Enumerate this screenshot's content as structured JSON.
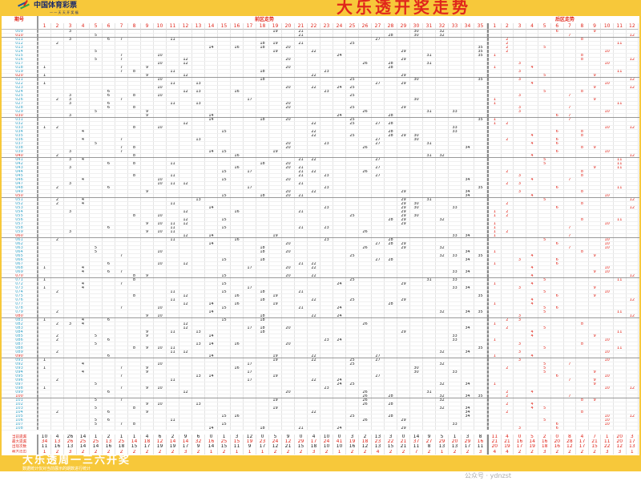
{
  "header": {
    "logo_text": "中国体育彩票",
    "logo_sub": "一 一 天 天 开 奖 福",
    "title": "大乐透开奖走势"
  },
  "table": {
    "issue_header": "期号",
    "front_header": "前区走势",
    "back_header": "后区走势",
    "front_count": 35,
    "back_count": 12
  },
  "colors": {
    "banner": "#f7c83a",
    "accent_red": "#e0261b",
    "issue_blue": "#35a4c8"
  },
  "draws": [
    [
      "009",
      [
        3,
        19,
        21,
        30,
        32
      ],
      [
        6,
        9
      ]
    ],
    [
      "010",
      [
        5,
        21,
        28,
        30,
        32
      ],
      [
        7,
        12
      ]
    ],
    [
      "011",
      [
        3,
        6,
        7,
        11,
        27
      ],
      [
        2,
        8
      ]
    ],
    [
      "012",
      [
        2,
        18,
        19,
        21,
        25
      ],
      [
        2,
        11
      ]
    ],
    [
      "013",
      [
        14,
        16,
        18,
        20,
        35
      ],
      [
        2,
        5
      ]
    ],
    [
      "014",
      [
        5,
        19,
        22,
        29,
        35
      ],
      [
        2,
        10
      ]
    ],
    [
      "015",
      [
        7,
        10,
        24,
        31,
        35
      ],
      [
        1,
        8
      ]
    ],
    [
      "016",
      [
        5,
        7,
        12,
        20,
        29
      ],
      [
        8,
        12
      ]
    ],
    [
      "017",
      [
        10,
        12,
        26,
        28,
        31
      ],
      [
        3,
        10
      ]
    ],
    [
      "018",
      [
        1,
        7,
        9,
        20,
        28
      ],
      [
        1,
        4
      ]
    ],
    [
      "019",
      [
        7,
        8,
        11,
        18,
        23
      ],
      [
        3,
        11
      ]
    ],
    [
      "020",
      [
        1,
        9,
        12,
        22,
        29
      ],
      [
        5,
        9
      ]
    ],
    [
      "021",
      [
        10,
        18,
        25,
        30,
        35
      ],
      [
        3,
        12
      ]
    ],
    [
      "022",
      [
        1,
        11,
        13,
        27,
        29
      ],
      [
        4,
        10
      ]
    ],
    [
      "023",
      [
        10,
        20,
        22,
        24,
        25
      ],
      [
        9,
        12
      ]
    ],
    [
      "024",
      [
        6,
        12,
        13,
        16,
        23
      ],
      [
        5,
        8
      ]
    ],
    [
      "025",
      [
        3,
        6,
        8,
        10,
        25
      ],
      [
        3,
        7
      ]
    ],
    [
      "026",
      [
        2,
        3,
        7,
        17,
        30
      ],
      [
        1,
        9
      ]
    ],
    [
      "027",
      [
        3,
        6,
        11,
        13,
        20
      ],
      [
        1,
        11
      ]
    ],
    [
      "028",
      [
        6,
        8,
        20,
        25,
        29
      ],
      [
        3,
        7
      ]
    ],
    [
      "029",
      [
        5,
        9,
        26,
        31,
        33
      ],
      [
        3,
        10
      ]
    ],
    [
      "030",
      [
        3,
        9,
        14,
        24,
        28
      ],
      [
        6,
        7
      ]
    ],
    [
      "031",
      [
        14,
        18,
        20,
        25,
        35
      ],
      [
        1,
        7
      ]
    ],
    [
      "032",
      [
        12,
        22,
        25,
        27,
        28
      ],
      [
        1,
        2
      ]
    ],
    [
      "033",
      [
        1,
        2,
        8,
        10,
        33
      ],
      [
        10,
        12
      ]
    ],
    [
      "034",
      [
        4,
        15,
        22,
        28,
        33
      ],
      [
        6,
        8
      ]
    ],
    [
      "035",
      [
        22,
        25,
        28,
        29,
        30
      ],
      [
        4,
        8
      ]
    ],
    [
      "036",
      [
        4,
        7,
        13,
        27,
        30
      ],
      [
        2,
        6
      ]
    ],
    [
      "037",
      [
        5,
        20,
        23,
        27,
        31
      ],
      [
        4,
        6
      ]
    ],
    [
      "038",
      [
        7,
        8,
        20,
        26,
        34
      ],
      [
        8,
        9
      ]
    ],
    [
      "039",
      [
        3,
        7,
        14,
        15,
        19
      ],
      [
        6,
        10
      ]
    ],
    [
      "040",
      [
        2,
        8,
        16,
        31,
        32
      ],
      [
        4,
        12
      ]
    ],
    [
      "041",
      [
        3,
        4,
        21,
        22,
        27
      ],
      [
        5,
        11
      ]
    ],
    [
      "042",
      [
        6,
        8,
        11,
        18,
        20
      ],
      [
        5,
        11
      ]
    ],
    [
      "043",
      [
        3,
        16,
        20,
        21,
        27
      ],
      [
        9,
        11
      ]
    ],
    [
      "044",
      [
        15,
        17,
        21,
        22,
        26
      ],
      [
        2,
        8
      ]
    ],
    [
      "045",
      [
        8,
        11,
        21,
        23,
        27
      ],
      [
        3,
        8
      ]
    ],
    [
      "046",
      [
        4,
        10,
        15,
        20,
        34
      ],
      [
        4,
        7
      ]
    ],
    [
      "047",
      [
        3,
        10,
        11,
        12,
        21
      ],
      [
        2,
        3
      ]
    ],
    [
      "048",
      [
        2,
        6,
        17,
        23,
        35
      ],
      [
        6,
        11
      ]
    ],
    [
      "049",
      [
        9,
        20,
        22,
        29,
        34
      ],
      [
        3,
        8
      ]
    ],
    [
      "050",
      [
        15,
        18,
        20,
        21,
        34
      ],
      [
        4,
        10
      ]
    ],
    [
      "051",
      [
        2,
        4,
        13,
        29,
        31
      ],
      [
        5,
        12
      ]
    ],
    [
      "052",
      [
        2,
        4,
        11,
        29,
        30
      ],
      [
        2,
        8
      ]
    ],
    [
      "053",
      [
        14,
        23,
        29,
        30,
        33
      ],
      [
        6,
        12
      ]
    ],
    [
      "054",
      [
        3,
        12,
        16,
        21,
        29
      ],
      [
        1,
        2
      ]
    ],
    [
      "055",
      [
        8,
        10,
        25,
        29,
        30
      ],
      [
        1,
        2
      ]
    ],
    [
      "056",
      [
        12,
        15,
        28,
        29,
        32
      ],
      [
        8,
        11
      ]
    ],
    [
      "057",
      [
        9,
        10,
        11,
        12,
        29
      ],
      [
        1,
        10
      ]
    ],
    [
      "058",
      [
        6,
        11,
        15,
        21,
        23
      ],
      [
        1,
        7
      ]
    ],
    [
      "059",
      [
        3,
        9,
        10,
        11,
        26
      ],
      [
        1,
        2
      ]
    ],
    [
      "060",
      [
        12,
        14,
        19,
        33,
        34
      ],
      [
        1,
        7
      ]
    ],
    [
      "061",
      [
        2,
        11,
        16,
        23,
        28
      ],
      [
        5,
        10
      ]
    ],
    [
      "062",
      [
        14,
        20,
        27,
        28,
        29
      ],
      [
        6,
        10
      ]
    ],
    [
      "063",
      [
        5,
        18,
        26,
        29,
        32
      ],
      [
        7,
        10
      ]
    ],
    [
      "064",
      [
        5,
        10,
        18,
        20,
        34
      ],
      [
        1,
        8
      ]
    ],
    [
      "065",
      [
        7,
        25,
        32,
        33,
        35
      ],
      [
        4,
        9
      ]
    ],
    [
      "066",
      [
        15,
        18,
        27,
        28,
        34
      ],
      [
        3,
        6
      ]
    ],
    [
      "067",
      [
        6,
        10,
        12,
        21,
        22
      ],
      [
        1,
        6
      ]
    ],
    [
      "068",
      [
        1,
        4,
        17,
        20,
        22
      ],
      [
        4,
        10
      ]
    ],
    [
      "069",
      [
        4,
        6,
        7,
        33,
        34
      ],
      [
        9,
        10
      ]
    ],
    [
      "070",
      [
        8,
        9,
        15,
        20,
        22
      ],
      [
        4,
        12
      ]
    ],
    [
      "071",
      [
        1,
        8,
        25,
        31,
        33
      ],
      [
        5,
        11
      ]
    ],
    [
      "072",
      [
        4,
        7,
        15,
        24,
        29
      ],
      [
        1,
        4
      ]
    ],
    [
      "073",
      [
        1,
        4,
        17,
        33,
        34
      ],
      [
        3,
        9
      ]
    ],
    [
      "074",
      [
        2,
        11,
        15,
        18,
        21
      ],
      [
        5,
        10
      ]
    ],
    [
      "075",
      [
        8,
        12,
        16,
        19,
        35
      ],
      [
        6,
        9
      ]
    ],
    [
      "076",
      [
        11,
        18,
        22,
        25,
        29
      ],
      [
        4,
        12
      ]
    ],
    [
      "077",
      [
        12,
        14,
        16,
        19,
        28
      ],
      [
        1,
        4
      ]
    ],
    [
      "078",
      [
        7,
        10,
        15,
        21,
        24
      ],
      [
        5,
        6
      ]
    ],
    [
      "079",
      [
        2,
        14,
        32,
        34,
        35
      ],
      [
        5,
        11
      ]
    ],
    [
      "080",
      [
        9,
        10,
        18,
        22,
        24
      ],
      [
        3,
        12
      ]
    ],
    [
      "081",
      [
        1,
        4,
        6,
        15,
        18
      ],
      [
        2,
        3
      ]
    ],
    [
      "082",
      [
        2,
        3,
        4,
        12,
        26
      ],
      [
        1,
        8
      ]
    ],
    [
      "083",
      [
        12,
        17,
        18,
        20,
        34
      ],
      [
        2,
        5
      ]
    ],
    [
      "084",
      [
        9,
        11,
        13,
        18,
        29
      ],
      [
        4,
        11
      ]
    ],
    [
      "085",
      [
        2,
        5,
        9,
        14,
        33
      ],
      [
        4,
        9
      ]
    ],
    [
      "086",
      [
        2,
        6,
        23,
        24,
        33
      ],
      [
        1,
        10
      ]
    ],
    [
      "087",
      [
        5,
        13,
        14,
        16,
        20
      ],
      [
        3,
        8
      ]
    ],
    [
      "088",
      [
        8,
        9,
        10,
        11,
        35
      ],
      [
        5,
        11
      ]
    ],
    [
      "089",
      [
        2,
        11,
        12,
        32,
        34
      ],
      [
        3,
        10
      ]
    ],
    [
      "090",
      [
        6,
        14,
        19,
        22,
        27
      ],
      [
        1,
        4
      ]
    ],
    [
      "091",
      [
        1,
        19,
        22,
        25,
        27
      ],
      [
        3,
        10
      ]
    ],
    [
      "092",
      [
        4,
        10,
        17,
        25,
        32
      ],
      [
        5,
        7
      ]
    ],
    [
      "093",
      [
        1,
        7,
        9,
        16,
        30
      ],
      [
        2,
        5
      ]
    ],
    [
      "094",
      [
        4,
        9,
        17,
        30,
        33
      ],
      [
        5,
        9
      ]
    ],
    [
      "095",
      [
        7,
        13,
        14,
        19,
        27
      ],
      [
        6,
        10
      ]
    ],
    [
      "096",
      [
        2,
        11,
        17,
        22,
        24
      ],
      [
        7,
        9
      ]
    ],
    [
      "097",
      [
        5,
        24,
        25,
        32,
        34
      ],
      [
        1,
        9
      ]
    ],
    [
      "098",
      [
        1,
        7,
        9,
        10,
        23
      ],
      [
        10,
        12
      ]
    ],
    [
      "099",
      [
        6,
        12,
        20,
        26,
        31
      ],
      [
        2,
        4
      ]
    ],
    [
      "100",
      [
        26,
        28,
        32,
        34,
        35
      ],
      [
        2,
        7
      ]
    ],
    [
      "101",
      [
        5,
        7,
        19,
        26,
        32
      ],
      [
        8,
        9
      ]
    ],
    [
      "102",
      [
        9,
        10,
        13,
        26,
        28
      ],
      [
        2,
        4
      ]
    ],
    [
      "103",
      [
        5,
        8,
        19,
        32,
        34
      ],
      [
        4,
        5
      ]
    ],
    [
      "104",
      [
        2,
        6,
        9,
        22,
        34
      ],
      [
        2,
        8
      ]
    ],
    [
      "105",
      [
        15,
        16,
        25,
        28,
        34
      ],
      [
        10,
        12
      ]
    ],
    [
      "106",
      [
        5,
        6,
        11,
        26,
        29
      ],
      [
        5,
        10
      ]
    ],
    [
      "107",
      [
        5,
        7,
        8,
        15,
        33
      ],
      [
        6,
        10
      ]
    ],
    [
      "108",
      [
        14,
        18,
        21,
        24,
        29
      ],
      [
        3,
        6
      ]
    ]
  ],
  "stats": [
    {
      "label": "当前遗漏",
      "red": false,
      "front": [
        10,
        4,
        26,
        14,
        1,
        2,
        1,
        1,
        4,
        6,
        2,
        9,
        6,
        0,
        1,
        3,
        12,
        0,
        5,
        9,
        0,
        4,
        10,
        0,
        3,
        2,
        13,
        3,
        0,
        14,
        9,
        5,
        1,
        3,
        8
      ],
      "back": [
        11,
        4,
        0,
        5,
        2,
        0,
        8,
        4,
        7,
        1,
        20,
        3
      ]
    },
    {
      "label": "最大遗漏",
      "red": true,
      "front": [
        34,
        13,
        26,
        25,
        25,
        13,
        25,
        14,
        18,
        12,
        14,
        14,
        32,
        16,
        25,
        15,
        19,
        23,
        24,
        12,
        29,
        17,
        24,
        41,
        19,
        18,
        23,
        22,
        21,
        37,
        27,
        29,
        20,
        29,
        16
      ],
      "back": [
        21,
        21,
        16,
        14,
        16,
        20,
        28,
        17,
        21,
        11,
        20,
        17
      ]
    },
    {
      "label": "出现次数",
      "red": false,
      "front": [
        11,
        16,
        13,
        14,
        14,
        16,
        18,
        15,
        17,
        19,
        19,
        17,
        9,
        14,
        15,
        11,
        9,
        17,
        12,
        21,
        15,
        18,
        10,
        10,
        16,
        12,
        13,
        15,
        21,
        11,
        8,
        13,
        13,
        17,
        11
      ],
      "back": [
        20,
        19,
        17,
        19,
        18,
        16,
        12,
        17,
        15,
        22,
        12,
        13
      ]
    },
    {
      "label": "最大连出",
      "red": true,
      "front": [
        1,
        2,
        3,
        2,
        2,
        2,
        2,
        2,
        2,
        2,
        2,
        3,
        2,
        1,
        2,
        1,
        1,
        1,
        2,
        2,
        2,
        3,
        2,
        1,
        2,
        2,
        4,
        2,
        2,
        7,
        2,
        1,
        2,
        2,
        3
      ],
      "back": [
        4,
        4,
        2,
        2,
        3,
        2,
        2,
        2,
        2,
        3,
        3,
        1
      ]
    }
  ],
  "footer": {
    "title": "大乐透周一三六开奖",
    "subtitle": "数据统计仅对当前展示的期数进行统计",
    "watermark": "公众号 · ydnzst"
  }
}
